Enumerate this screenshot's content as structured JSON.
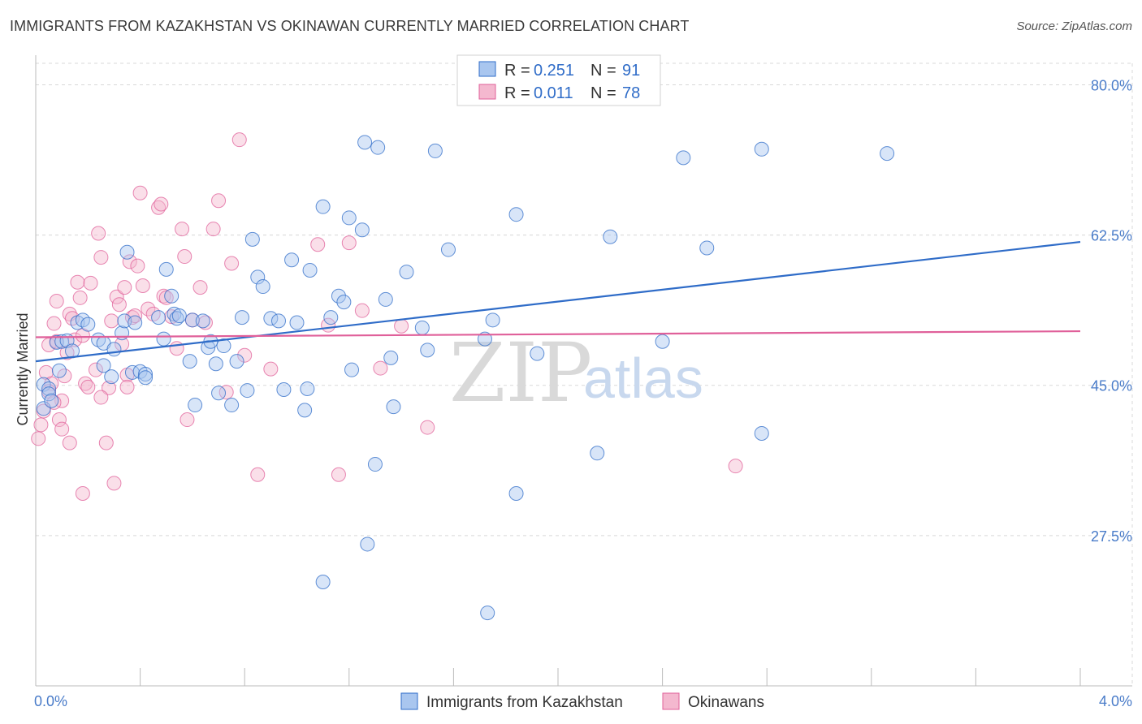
{
  "title": "IMMIGRANTS FROM KAZAKHSTAN VS OKINAWAN CURRENTLY MARRIED CORRELATION CHART",
  "source": "Source: ZipAtlas.com",
  "watermark": {
    "zip": "ZIP",
    "atlas": "atlas"
  },
  "colors": {
    "blue": "#2f6cc8",
    "blue_fill": "#a9c6ef",
    "pink": "#e0609a",
    "pink_fill": "#f4b8cf",
    "grid": "#d8d8d8",
    "tick": "#4a7cc9"
  },
  "legend": {
    "r_label": "R = ",
    "n_label": "N = ",
    "entries": [
      {
        "r": "0.251",
        "n": "91"
      },
      {
        "r": "0.011",
        "n": "78"
      }
    ]
  },
  "chart_data": {
    "type": "scatter",
    "title": "IMMIGRANTS FROM KAZAKHSTAN VS OKINAWAN CURRENTLY MARRIED CORRELATION CHART",
    "xlabel": "",
    "ylabel": "Currently Married",
    "xlim": [
      0,
      4.0
    ],
    "ylim": [
      10.0,
      82.5
    ],
    "x_tick_labels": [
      "0.0%",
      "4.0%"
    ],
    "y_ticks": [
      27.5,
      45.0,
      62.5,
      80.0
    ],
    "y_tick_labels": [
      "27.5%",
      "45.0%",
      "62.5%",
      "80.0%"
    ],
    "grid": true,
    "legend_position": "top-center",
    "series": [
      {
        "name": "Immigrants from Kazakhstan",
        "color": "#2f6cc8",
        "trend": {
          "x": [
            0.0,
            4.0
          ],
          "y": [
            47.8,
            61.7
          ]
        },
        "points": [
          [
            0.03,
            42.3
          ],
          [
            0.03,
            45.1
          ],
          [
            0.05,
            44.6
          ],
          [
            0.05,
            44.0
          ],
          [
            0.06,
            43.2
          ],
          [
            0.08,
            50.0
          ],
          [
            0.09,
            46.7
          ],
          [
            0.1,
            50.1
          ],
          [
            0.12,
            50.2
          ],
          [
            0.14,
            49.0
          ],
          [
            0.16,
            52.3
          ],
          [
            0.18,
            52.6
          ],
          [
            0.2,
            52.1
          ],
          [
            0.24,
            50.3
          ],
          [
            0.26,
            49.9
          ],
          [
            0.26,
            47.3
          ],
          [
            0.29,
            46.0
          ],
          [
            0.3,
            49.2
          ],
          [
            0.33,
            51.1
          ],
          [
            0.34,
            52.5
          ],
          [
            0.35,
            60.5
          ],
          [
            0.37,
            46.5
          ],
          [
            0.38,
            52.3
          ],
          [
            0.4,
            46.6
          ],
          [
            0.42,
            46.3
          ],
          [
            0.42,
            45.9
          ],
          [
            0.47,
            52.9
          ],
          [
            0.49,
            50.4
          ],
          [
            0.5,
            58.5
          ],
          [
            0.52,
            55.4
          ],
          [
            0.53,
            53.3
          ],
          [
            0.54,
            52.8
          ],
          [
            0.59,
            47.8
          ],
          [
            0.6,
            52.6
          ],
          [
            0.61,
            42.7
          ],
          [
            0.64,
            52.5
          ],
          [
            0.66,
            49.4
          ],
          [
            0.67,
            50.1
          ],
          [
            0.69,
            47.5
          ],
          [
            0.7,
            44.1
          ],
          [
            0.72,
            49.6
          ],
          [
            0.75,
            42.7
          ],
          [
            0.77,
            47.8
          ],
          [
            0.79,
            52.9
          ],
          [
            0.81,
            44.4
          ],
          [
            0.83,
            62.0
          ],
          [
            0.85,
            57.6
          ],
          [
            0.87,
            56.5
          ],
          [
            0.9,
            52.8
          ],
          [
            0.93,
            52.5
          ],
          [
            0.95,
            44.5
          ],
          [
            0.98,
            59.6
          ],
          [
            1.0,
            52.3
          ],
          [
            1.03,
            42.1
          ],
          [
            1.04,
            44.6
          ],
          [
            1.05,
            58.4
          ],
          [
            1.1,
            65.8
          ],
          [
            1.13,
            52.9
          ],
          [
            1.16,
            55.4
          ],
          [
            1.18,
            54.7
          ],
          [
            1.2,
            64.5
          ],
          [
            1.21,
            46.8
          ],
          [
            1.25,
            63.1
          ],
          [
            1.26,
            73.3
          ],
          [
            1.3,
            35.8
          ],
          [
            1.31,
            72.7
          ],
          [
            1.34,
            55.0
          ],
          [
            1.36,
            48.2
          ],
          [
            1.37,
            42.5
          ],
          [
            1.42,
            58.2
          ],
          [
            1.48,
            51.7
          ],
          [
            1.5,
            49.1
          ],
          [
            1.53,
            72.3
          ],
          [
            1.58,
            60.8
          ],
          [
            1.72,
            50.4
          ],
          [
            1.75,
            52.6
          ],
          [
            1.73,
            18.5
          ],
          [
            1.84,
            32.4
          ],
          [
            1.84,
            64.9
          ],
          [
            1.92,
            48.7
          ],
          [
            2.15,
            37.1
          ],
          [
            2.2,
            62.3
          ],
          [
            2.4,
            50.1
          ],
          [
            2.48,
            71.5
          ],
          [
            2.57,
            61.0
          ],
          [
            2.78,
            72.5
          ],
          [
            2.78,
            39.4
          ],
          [
            3.26,
            72.0
          ],
          [
            1.27,
            26.5
          ],
          [
            1.1,
            22.1
          ],
          [
            0.55,
            53.1
          ]
        ]
      },
      {
        "name": "Okinawans",
        "color": "#e0609a",
        "trend": {
          "x": [
            0.0,
            4.0
          ],
          "y": [
            50.6,
            51.3
          ]
        },
        "points": [
          [
            0.01,
            38.8
          ],
          [
            0.02,
            40.4
          ],
          [
            0.03,
            42.0
          ],
          [
            0.04,
            46.5
          ],
          [
            0.05,
            49.7
          ],
          [
            0.06,
            45.2
          ],
          [
            0.07,
            52.2
          ],
          [
            0.08,
            54.8
          ],
          [
            0.08,
            50.1
          ],
          [
            0.09,
            41.0
          ],
          [
            0.1,
            43.2
          ],
          [
            0.11,
            46.1
          ],
          [
            0.12,
            48.8
          ],
          [
            0.13,
            53.3
          ],
          [
            0.14,
            52.8
          ],
          [
            0.15,
            50.3
          ],
          [
            0.16,
            57.0
          ],
          [
            0.17,
            55.2
          ],
          [
            0.18,
            50.8
          ],
          [
            0.19,
            45.2
          ],
          [
            0.2,
            44.8
          ],
          [
            0.21,
            56.9
          ],
          [
            0.23,
            46.8
          ],
          [
            0.24,
            62.7
          ],
          [
            0.25,
            59.9
          ],
          [
            0.27,
            38.3
          ],
          [
            0.28,
            44.7
          ],
          [
            0.29,
            52.5
          ],
          [
            0.3,
            33.6
          ],
          [
            0.31,
            55.3
          ],
          [
            0.32,
            54.4
          ],
          [
            0.33,
            49.8
          ],
          [
            0.34,
            56.4
          ],
          [
            0.35,
            46.2
          ],
          [
            0.36,
            59.4
          ],
          [
            0.37,
            52.9
          ],
          [
            0.38,
            53.1
          ],
          [
            0.39,
            58.9
          ],
          [
            0.4,
            67.4
          ],
          [
            0.41,
            56.6
          ],
          [
            0.43,
            53.9
          ],
          [
            0.45,
            53.3
          ],
          [
            0.47,
            65.7
          ],
          [
            0.48,
            66.1
          ],
          [
            0.49,
            55.4
          ],
          [
            0.5,
            55.2
          ],
          [
            0.52,
            53.0
          ],
          [
            0.54,
            49.3
          ],
          [
            0.56,
            63.2
          ],
          [
            0.57,
            60.0
          ],
          [
            0.58,
            41.0
          ],
          [
            0.6,
            52.6
          ],
          [
            0.63,
            56.4
          ],
          [
            0.65,
            52.3
          ],
          [
            0.68,
            63.2
          ],
          [
            0.7,
            66.5
          ],
          [
            0.73,
            44.2
          ],
          [
            0.75,
            59.2
          ],
          [
            0.78,
            73.6
          ],
          [
            0.8,
            48.5
          ],
          [
            0.85,
            34.6
          ],
          [
            0.9,
            46.9
          ],
          [
            1.08,
            61.4
          ],
          [
            1.12,
            52.0
          ],
          [
            1.16,
            34.6
          ],
          [
            1.2,
            61.6
          ],
          [
            1.25,
            53.7
          ],
          [
            1.32,
            47.0
          ],
          [
            1.4,
            51.9
          ],
          [
            1.5,
            40.1
          ],
          [
            2.68,
            35.6
          ],
          [
            0.13,
            38.3
          ],
          [
            0.18,
            32.4
          ],
          [
            0.1,
            39.9
          ],
          [
            0.05,
            44.3
          ],
          [
            0.07,
            43.0
          ],
          [
            0.35,
            44.8
          ],
          [
            0.25,
            43.6
          ]
        ]
      }
    ]
  },
  "bottom_legend": [
    "Immigrants from Kazakhstan",
    "Okinawans"
  ]
}
